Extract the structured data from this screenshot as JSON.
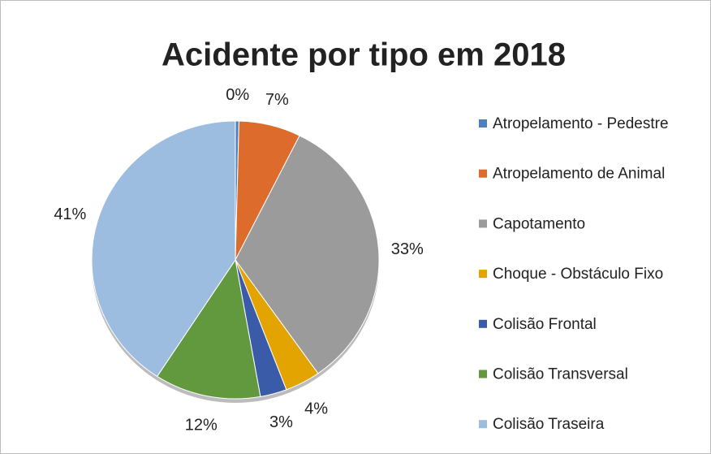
{
  "chart_data": {
    "type": "pie",
    "title": "Acidente por tipo em 2018",
    "categories": [
      "Atropelamento - Pedestre",
      "Atropelamento de Animal",
      "Capotamento",
      "Choque  - Obstáculo Fixo",
      "Colisão Frontal",
      "Colisão Transversal",
      "Colisão Traseira"
    ],
    "values": [
      0.4,
      7,
      33,
      4,
      3,
      12,
      41
    ],
    "value_labels": [
      "0%",
      "7%",
      "33%",
      "4%",
      "3%",
      "12%",
      "41%"
    ],
    "colors": [
      "#4f81bd",
      "#dd6b2c",
      "#9b9b9b",
      "#e3a300",
      "#3a5ca8",
      "#62993e",
      "#9dbde0"
    ],
    "legend": "right"
  }
}
